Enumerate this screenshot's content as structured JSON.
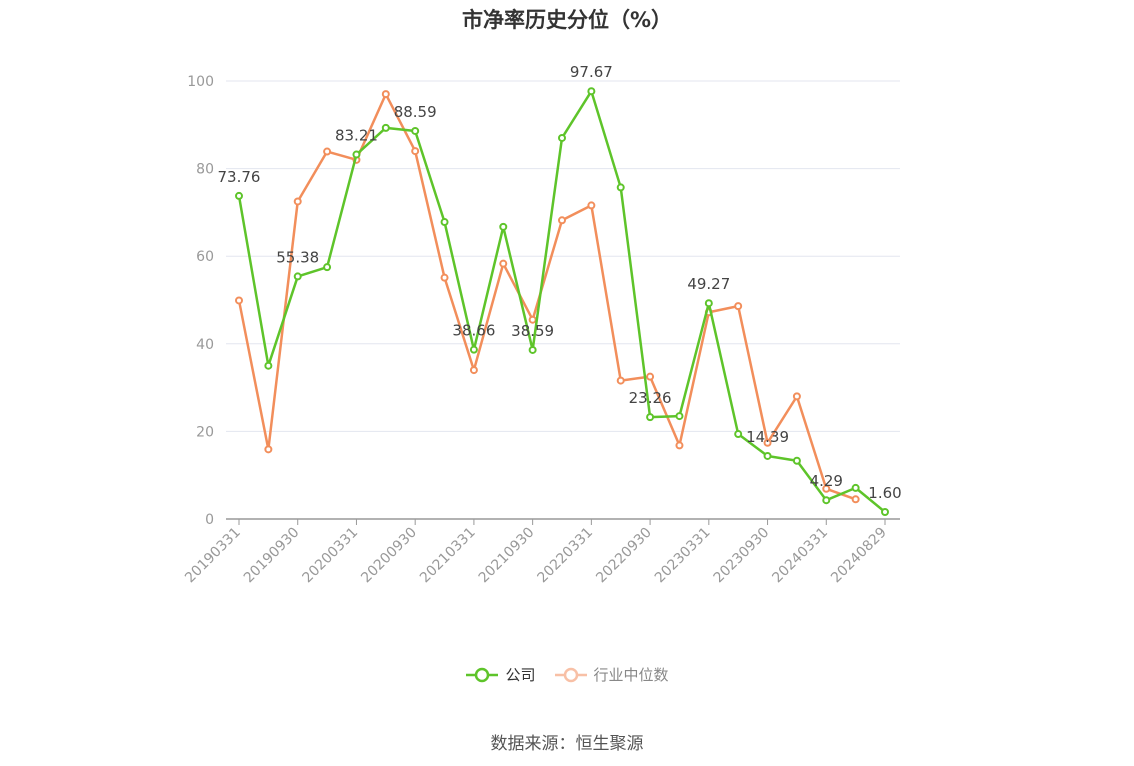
{
  "chart_data": {
    "type": "line",
    "title": "市净率历史分位（%）",
    "x": [
      "20190331",
      "20190630",
      "20190930",
      "20191231",
      "20200331",
      "20200630",
      "20200930",
      "20201231",
      "20210331",
      "20210630",
      "20210930",
      "20211231",
      "20220331",
      "20220630",
      "20220930",
      "20221231",
      "20230331",
      "20230630",
      "20230930",
      "20231231",
      "20240331",
      "20240630",
      "20240829"
    ],
    "x_tick_labels": [
      "20190331",
      "20190930",
      "20200331",
      "20200930",
      "20210331",
      "20210930",
      "20220331",
      "20220930",
      "20230331",
      "20230930",
      "20240331",
      "20240829"
    ],
    "ylim": [
      0,
      100
    ],
    "y_ticks": [
      0,
      20,
      40,
      60,
      80,
      100
    ],
    "grid": true,
    "series": [
      {
        "name": "公司",
        "color": "#5ec42a",
        "values": [
          73.76,
          35.0,
          55.38,
          57.5,
          83.21,
          89.3,
          88.59,
          67.8,
          38.66,
          66.7,
          38.59,
          87.0,
          97.67,
          75.7,
          23.26,
          23.5,
          49.27,
          19.4,
          14.39,
          13.3,
          4.29,
          7.1,
          1.6
        ],
        "labels": {
          "0": "73.76",
          "2": "55.38",
          "4": "83.21",
          "6": "88.59",
          "8": "38.66",
          "10": "38.59",
          "12": "97.67",
          "14": "23.26",
          "16": "49.27",
          "18": "14.39",
          "20": "4.29",
          "22": "1.60"
        }
      },
      {
        "name": "行业中位数",
        "color": "#f28e5b",
        "values": [
          49.9,
          15.9,
          72.5,
          83.9,
          82.0,
          97.0,
          84.0,
          55.1,
          34.0,
          58.3,
          45.5,
          68.2,
          71.6,
          31.6,
          32.5,
          16.8,
          47.2,
          48.6,
          17.4,
          28.0,
          6.9,
          4.5,
          null
        ]
      }
    ]
  },
  "legend": {
    "company": "公司",
    "industry": "行业中位数"
  },
  "source": "数据来源：恒生聚源"
}
